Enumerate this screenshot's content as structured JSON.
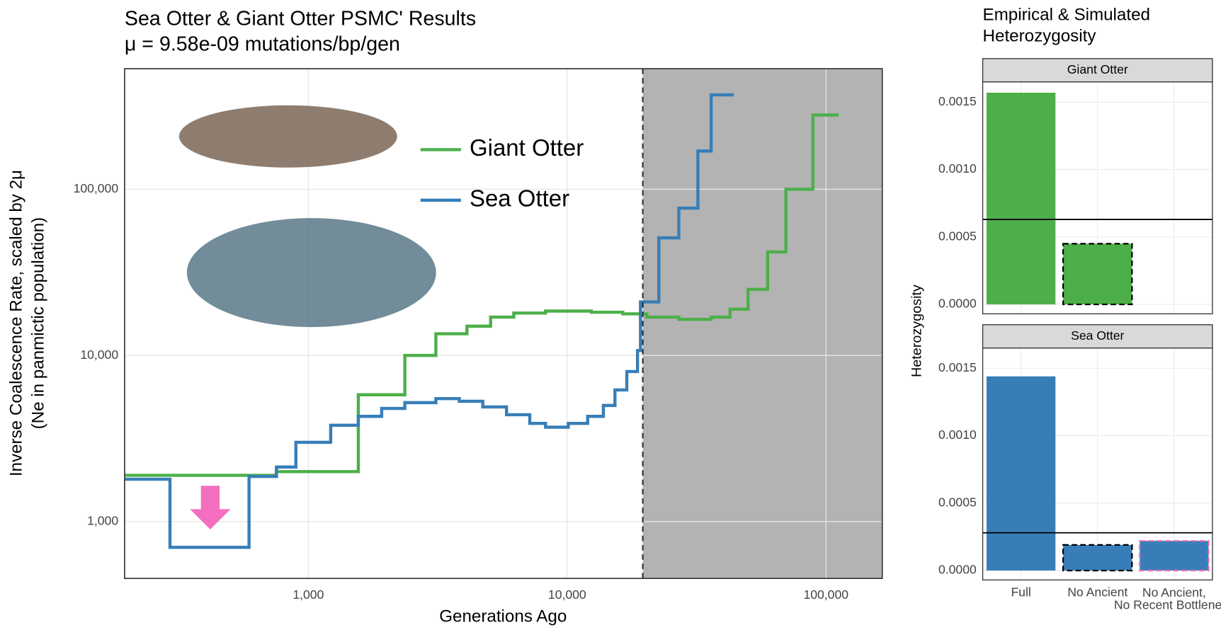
{
  "chart_data": [
    {
      "type": "line",
      "title": "Sea Otter & Giant Otter PSMC' Results",
      "subtitle": "μ = 9.58e-09 mutations/bp/gen",
      "xlabel": "Generations Ago",
      "ylabel": [
        "Inverse Coalescence Rate, scaled by 2μ",
        "(Ne in panmictic population)"
      ],
      "xscale": "log",
      "yscale": "log",
      "step": true,
      "grid": true,
      "xlim": [
        195,
        165000
      ],
      "ylim": [
        455,
        532000
      ],
      "xticks": [
        {
          "value": 1000,
          "label": "1,000"
        },
        {
          "value": 10000,
          "label": "10,000"
        },
        {
          "value": 100000,
          "label": "100,000"
        }
      ],
      "yticks": [
        {
          "value": 1000,
          "label": "1,000"
        },
        {
          "value": 10000,
          "label": "10,000"
        },
        {
          "value": 100000,
          "label": "100,000"
        }
      ],
      "vline": 19600,
      "shade_color": "#b3b3b3",
      "series": [
        {
          "name": "Giant Otter",
          "color": "#4daf4a",
          "x": [
            195,
            753,
            990,
            1560,
            2360,
            3110,
            4100,
            5060,
            6220,
            8250,
            12400,
            16400,
            20300,
            27000,
            36000,
            42600,
            50000,
            59500,
            70000,
            89000,
            112000
          ],
          "values": [
            1900,
            2000,
            2000,
            5800,
            10000,
            13500,
            15000,
            17000,
            18000,
            18500,
            18200,
            17800,
            17000,
            16500,
            17000,
            19000,
            25000,
            42000,
            100000,
            280000,
            280000
          ]
        },
        {
          "name": "Sea Otter",
          "color": "#377eb8",
          "x": [
            195,
            292,
            590,
            753,
            895,
            1100,
            1220,
            1560,
            1920,
            2360,
            3110,
            3830,
            4720,
            5830,
            7170,
            8250,
            10100,
            12000,
            13800,
            15300,
            17000,
            18700,
            19200,
            20300,
            22600,
            27000,
            32000,
            36000,
            44000
          ],
          "values": [
            1800,
            700,
            1870,
            2130,
            3000,
            3000,
            3800,
            4300,
            4800,
            5200,
            5500,
            5300,
            4900,
            4400,
            3900,
            3700,
            3900,
            4300,
            5000,
            6200,
            8000,
            10700,
            21000,
            21000,
            51000,
            77000,
            170000,
            370000,
            370000
          ]
        }
      ]
    },
    {
      "type": "bar",
      "title": [
        "Empirical & Simulated",
        "Heterozygosity"
      ],
      "ylabel": "Heterozygosity",
      "categories": [
        "Full",
        "No Ancient",
        "No Ancient,\nNo Recent Bottleneck"
      ],
      "bar_outlines": [
        null,
        "#000000",
        "#f06bb5"
      ],
      "ylim": [
        -7e-05,
        0.00165
      ],
      "yticks": [
        {
          "value": 0,
          "label": "0.0000"
        },
        {
          "value": 0.0005,
          "label": "0.0005"
        },
        {
          "value": 0.001,
          "label": "0.0010"
        },
        {
          "value": 0.0015,
          "label": "0.0015"
        }
      ],
      "panels": [
        {
          "name": "Giant Otter",
          "color": "#4daf4a",
          "values": [
            0.00157,
            0.00045,
            null
          ],
          "empirical": 0.00063
        },
        {
          "name": "Sea Otter",
          "color": "#377eb8",
          "values": [
            0.00144,
            0.00019,
            0.00022
          ],
          "empirical": 0.00028
        }
      ]
    }
  ]
}
